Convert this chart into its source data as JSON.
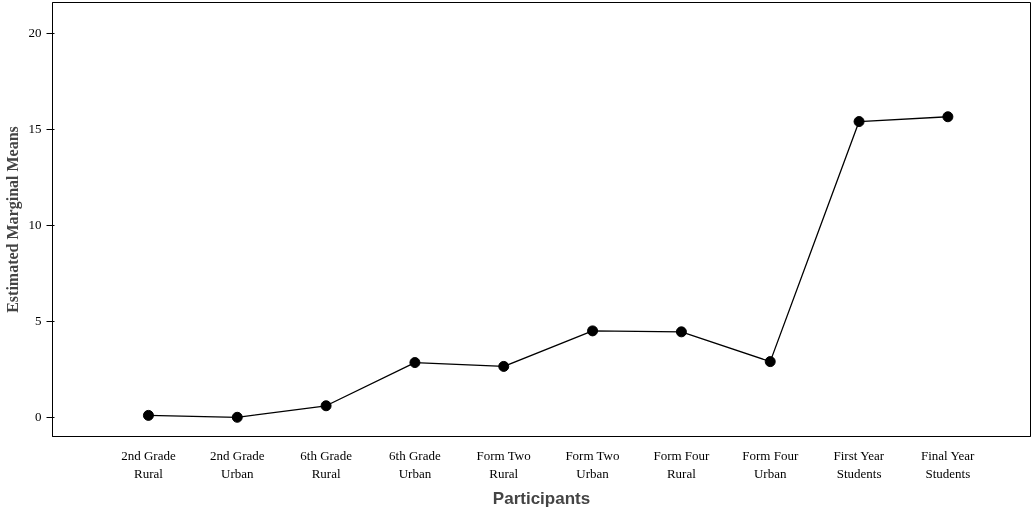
{
  "chart_data": {
    "type": "line",
    "xlabel": "Participants",
    "ylabel": "Estimated Marginal Means",
    "categories": [
      "2nd Grade Rural",
      "2nd Grade Urban",
      "6th Grade Rural",
      "6th Grade Urban",
      "Form Two Rural",
      "Form Two Urban",
      "Form Four Rural",
      "Form Four Urban",
      "First Year Students",
      "Final Year Students"
    ],
    "series": [
      {
        "color": "#000000",
        "values": [
          0.1,
          0.0,
          0.6,
          2.85,
          2.65,
          4.5,
          4.45,
          2.9,
          15.4,
          15.65
        ]
      }
    ],
    "ylim": [
      -1,
      21.6
    ],
    "yticks": [
      0,
      5,
      10,
      15,
      20
    ],
    "marker": "circle",
    "line_style": "solid",
    "grid": false
  }
}
